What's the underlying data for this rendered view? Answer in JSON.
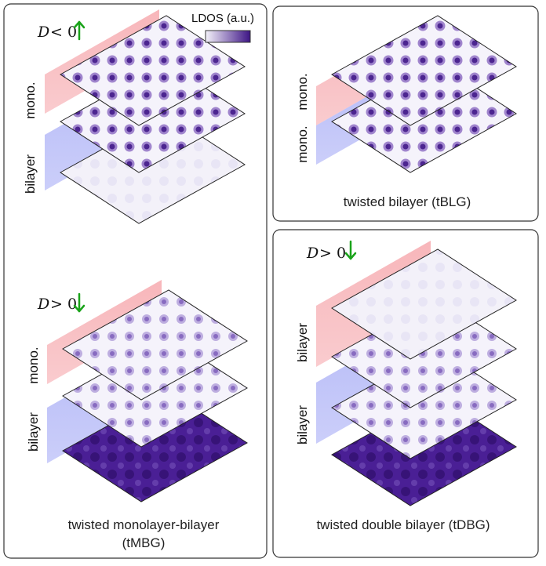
{
  "legend": {
    "label": "LDOS (a.u.)",
    "color_low": "#f4f2fa",
    "color_high": "#3d1485"
  },
  "colors": {
    "mono_band": "#f6a9ae",
    "bilayer_band": "#a9aef6",
    "arrow": "#1aa31a",
    "dark_spot": "#4b1c9a"
  },
  "panels": {
    "tmbg": {
      "caption_line1": "twisted monolayer-bilayer",
      "caption_line2": "(tMBG)",
      "top": {
        "d_label": "D",
        "d_rel": "< 0",
        "arrow": "up",
        "labels": [
          "mono.",
          "bilayer"
        ]
      },
      "bottom": {
        "d_label": "D",
        "d_rel": "> 0",
        "arrow": "down",
        "labels": [
          "mono.",
          "bilayer"
        ]
      }
    },
    "tblg": {
      "caption": "twisted bilayer (tBLG)",
      "labels": [
        "mono.",
        "mono."
      ]
    },
    "tdbg": {
      "caption": "twisted double bilayer (tDBG)",
      "d_label": "D",
      "d_rel": "> 0",
      "arrow": "down",
      "labels": [
        "bilayer",
        "bilayer"
      ]
    }
  }
}
